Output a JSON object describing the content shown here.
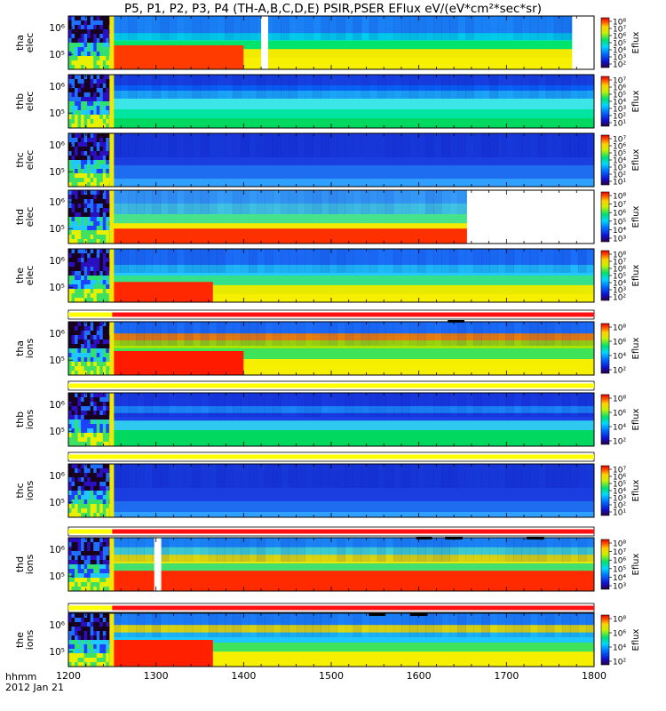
{
  "chart_data": {
    "type": "heatmap",
    "title": "P5, P1, P2, P3, P4 (TH-A,B,C,D,E) PSIR,PSER EFlux eV/(eV*cm²*sec*sr)",
    "x_ticks": [
      "1200",
      "1300",
      "1400",
      "1500",
      "1600",
      "1700",
      "1800"
    ],
    "x_range": [
      1200,
      1800
    ],
    "x_axis_label": "hhmm",
    "date_label": "2012 Jan 21",
    "panels": [
      {
        "id": "tha_elec",
        "probe": "tha",
        "species": "elec",
        "y_ticks": [
          "10⁶",
          "10⁵"
        ],
        "cbar_label": "Eflux",
        "cbar_range": [
          100,
          100000000
        ],
        "cbar_ticks": [
          "10⁸",
          "10⁷",
          "10⁶",
          "10⁵",
          "10⁴",
          "10³",
          "10²"
        ],
        "x_start": 1200,
        "x_end": 1800,
        "gaps": [
          [
            1420,
            1428
          ],
          [
            1775,
            1800
          ]
        ],
        "bands": [
          [
            0.0,
            0.32,
            "#1e90ff"
          ],
          [
            0.32,
            0.46,
            "#00e0f0"
          ],
          [
            0.46,
            0.62,
            "#00e36c"
          ],
          [
            0.62,
            0.78,
            "#f2ea00"
          ],
          [
            0.78,
            1.0,
            "#f7f000"
          ]
        ],
        "hot": {
          "x_end": 1400,
          "y0": 0.55,
          "color": "#ff3b00"
        }
      },
      {
        "id": "thb_elec",
        "probe": "thb",
        "species": "elec",
        "y_ticks": [
          "10⁶",
          "10⁵"
        ],
        "cbar_label": "Eflux",
        "cbar_range": [
          10,
          10000000
        ],
        "cbar_ticks": [
          "10⁷",
          "10⁶",
          "10⁵",
          "10⁴",
          "10³",
          "10²",
          "10¹"
        ],
        "x_start": 1200,
        "x_end": 1800,
        "gaps": [],
        "bands": [
          [
            0.0,
            0.2,
            "#1a46e6"
          ],
          [
            0.2,
            0.3,
            "#0a6cff"
          ],
          [
            0.3,
            0.45,
            "#1eb4ff"
          ],
          [
            0.45,
            0.65,
            "#3ce6e6"
          ],
          [
            0.65,
            0.82,
            "#00e6a0"
          ],
          [
            0.82,
            1.0,
            "#00d860"
          ]
        ],
        "hot": null
      },
      {
        "id": "thc_elec",
        "probe": "thc",
        "species": "elec",
        "y_ticks": [
          "10⁶",
          "10⁵"
        ],
        "cbar_label": "Eflux",
        "cbar_range": [
          10,
          10000000
        ],
        "cbar_ticks": [
          "10⁷",
          "10⁶",
          "10⁵",
          "10⁴",
          "10³",
          "10²",
          "10¹"
        ],
        "x_start": 1200,
        "x_end": 1800,
        "gaps": [],
        "bands": [
          [
            0.0,
            0.6,
            "#1a3ee0"
          ],
          [
            0.6,
            0.85,
            "#1e6cf0"
          ],
          [
            0.85,
            1.0,
            "#2fa0ff"
          ]
        ],
        "hot": null
      },
      {
        "id": "thd_elec",
        "probe": "thd",
        "species": "elec",
        "y_ticks": [
          "10⁶",
          "10⁵"
        ],
        "cbar_label": "Eflux",
        "cbar_range": [
          1000,
          100000000
        ],
        "cbar_ticks": [
          "10⁸",
          "10⁷",
          "10⁶",
          "10⁵",
          "10⁴",
          "10³"
        ],
        "x_start": 1200,
        "x_end": 1800,
        "gaps": [
          [
            1655,
            1800
          ]
        ],
        "bands": [
          [
            0.0,
            0.25,
            "#3aa8ff"
          ],
          [
            0.25,
            0.45,
            "#46d4e8"
          ],
          [
            0.45,
            0.62,
            "#46e28c"
          ],
          [
            0.62,
            0.78,
            "#f2ea00"
          ],
          [
            0.78,
            1.0,
            "#ff9a00"
          ]
        ],
        "hot": {
          "x_end": 1655,
          "y0": 0.72,
          "color": "#ff3000"
        }
      },
      {
        "id": "the_elec",
        "probe": "the",
        "species": "elec",
        "y_ticks": [
          "10⁶",
          "10⁵"
        ],
        "cbar_label": "Eflux",
        "cbar_range": [
          100,
          100000000
        ],
        "cbar_ticks": [
          "10⁸",
          "10⁷",
          "10⁶",
          "10⁵",
          "10⁴",
          "10³",
          "10²"
        ],
        "x_start": 1200,
        "x_end": 1800,
        "gaps": [],
        "bands": [
          [
            0.0,
            0.3,
            "#1e78ff"
          ],
          [
            0.3,
            0.5,
            "#22c8ff"
          ],
          [
            0.5,
            0.68,
            "#35e08a"
          ],
          [
            0.68,
            0.85,
            "#e8ea00"
          ],
          [
            0.85,
            1.0,
            "#f6f000"
          ]
        ],
        "hot": {
          "x_end": 1365,
          "y0": 0.62,
          "color": "#ff2800"
        }
      },
      {
        "id": "tha_ions",
        "probe": "tha",
        "species": "ions",
        "y_ticks": [
          "10⁶",
          "10⁵"
        ],
        "cbar_label": "Eflux",
        "cbar_range": [
          100,
          100000000
        ],
        "cbar_ticks": [
          "10⁸",
          "10⁶",
          "10⁴",
          "10²"
        ],
        "x_start": 1200,
        "x_end": 1800,
        "gaps": [],
        "bands": [
          [
            0.0,
            0.22,
            "#1e78ff"
          ],
          [
            0.22,
            0.35,
            "#ff8a00"
          ],
          [
            0.35,
            0.5,
            "#a8e600"
          ],
          [
            0.5,
            0.7,
            "#3ee35a"
          ],
          [
            0.7,
            1.0,
            "#f6f000"
          ]
        ],
        "hot": {
          "x_end": 1400,
          "y0": 0.55,
          "color": "#ff1a00"
        }
      },
      {
        "id": "thb_ions",
        "probe": "thb",
        "species": "ions",
        "y_ticks": [
          "10⁶",
          "10⁵"
        ],
        "cbar_label": "Eflux",
        "cbar_range": [
          100,
          100000000
        ],
        "cbar_ticks": [
          "10⁸",
          "10⁶",
          "10⁴",
          "10²"
        ],
        "x_start": 1200,
        "x_end": 1800,
        "gaps": [],
        "bands": [
          [
            0.0,
            0.25,
            "#1a40e6"
          ],
          [
            0.25,
            0.38,
            "#1e90ff"
          ],
          [
            0.38,
            0.52,
            "#1a40e6"
          ],
          [
            0.52,
            0.7,
            "#2fc8ee"
          ],
          [
            0.7,
            1.0,
            "#00d860"
          ]
        ],
        "hot": null
      },
      {
        "id": "thc_ions",
        "probe": "thc",
        "species": "ions",
        "y_ticks": [
          "10⁶",
          "10⁵"
        ],
        "cbar_label": "Eflux",
        "cbar_range": [
          10,
          10000000
        ],
        "cbar_ticks": [
          "10⁷",
          "10⁶",
          "10⁵",
          "10⁴",
          "10³",
          "10²",
          "10¹"
        ],
        "x_start": 1200,
        "x_end": 1800,
        "gaps": [],
        "bands": [
          [
            0.0,
            0.7,
            "#1a3ee0"
          ],
          [
            0.7,
            0.9,
            "#1e6cf0"
          ],
          [
            0.9,
            1.0,
            "#2fa0ff"
          ]
        ],
        "hot": null
      },
      {
        "id": "thd_ions",
        "probe": "thd",
        "species": "ions",
        "y_ticks": [
          "10⁶",
          "10⁵"
        ],
        "cbar_label": "Eflux",
        "cbar_range": [
          1000,
          100000000
        ],
        "cbar_ticks": [
          "10⁸",
          "10⁷",
          "10⁶",
          "10⁵",
          "10⁴",
          "10³"
        ],
        "x_start": 1200,
        "x_end": 1800,
        "gaps": [
          [
            1298,
            1306
          ]
        ],
        "bands": [
          [
            0.0,
            0.18,
            "#1e90ff"
          ],
          [
            0.18,
            0.32,
            "#44e0d8"
          ],
          [
            0.32,
            0.48,
            "#f2ea00"
          ],
          [
            0.48,
            0.62,
            "#44e06e"
          ],
          [
            0.62,
            1.0,
            "#ff2a00"
          ]
        ],
        "hot": null
      },
      {
        "id": "the_ions",
        "probe": "the",
        "species": "ions",
        "y_ticks": [
          "10⁶",
          "10⁵"
        ],
        "cbar_label": "Eflux",
        "cbar_range": [
          100,
          100000000
        ],
        "cbar_ticks": [
          "10⁸",
          "10⁶",
          "10⁴",
          "10²"
        ],
        "x_start": 1200,
        "x_end": 1800,
        "gaps": [],
        "bands": [
          [
            0.0,
            0.22,
            "#1e8cff"
          ],
          [
            0.22,
            0.36,
            "#f2ea00"
          ],
          [
            0.36,
            0.55,
            "#1ec8ff"
          ],
          [
            0.55,
            0.72,
            "#3ee35a"
          ],
          [
            0.72,
            1.0,
            "#f6f000"
          ]
        ],
        "hot": {
          "x_end": 1365,
          "y0": 0.5,
          "color": "#ff2000"
        }
      }
    ],
    "status_bars": [
      {
        "after_panel": "the_elec",
        "segments": [
          [
            1200,
            1250,
            "yellow"
          ],
          [
            1250,
            1800,
            "red"
          ]
        ],
        "ticks": [
          [
            1633,
            1652
          ]
        ]
      },
      {
        "after_panel": "tha_ions",
        "segments": [
          [
            1200,
            1800,
            "yellow"
          ]
        ],
        "ticks": []
      },
      {
        "after_panel": "thb_ions",
        "segments": [
          [
            1200,
            1800,
            "yellow"
          ]
        ],
        "ticks": []
      },
      {
        "after_panel": "thc_ions",
        "segments": [
          [
            1200,
            1250,
            "yellow"
          ],
          [
            1250,
            1800,
            "red"
          ]
        ],
        "ticks": [
          [
            1597,
            1615
          ],
          [
            1630,
            1650
          ],
          [
            1723,
            1743
          ]
        ]
      },
      {
        "after_panel": "thd_ions",
        "segments": [
          [
            1200,
            1250,
            "yellow"
          ],
          [
            1250,
            1800,
            "red"
          ]
        ],
        "ticks": [
          [
            1543,
            1562
          ],
          [
            1590,
            1610
          ]
        ]
      }
    ]
  }
}
